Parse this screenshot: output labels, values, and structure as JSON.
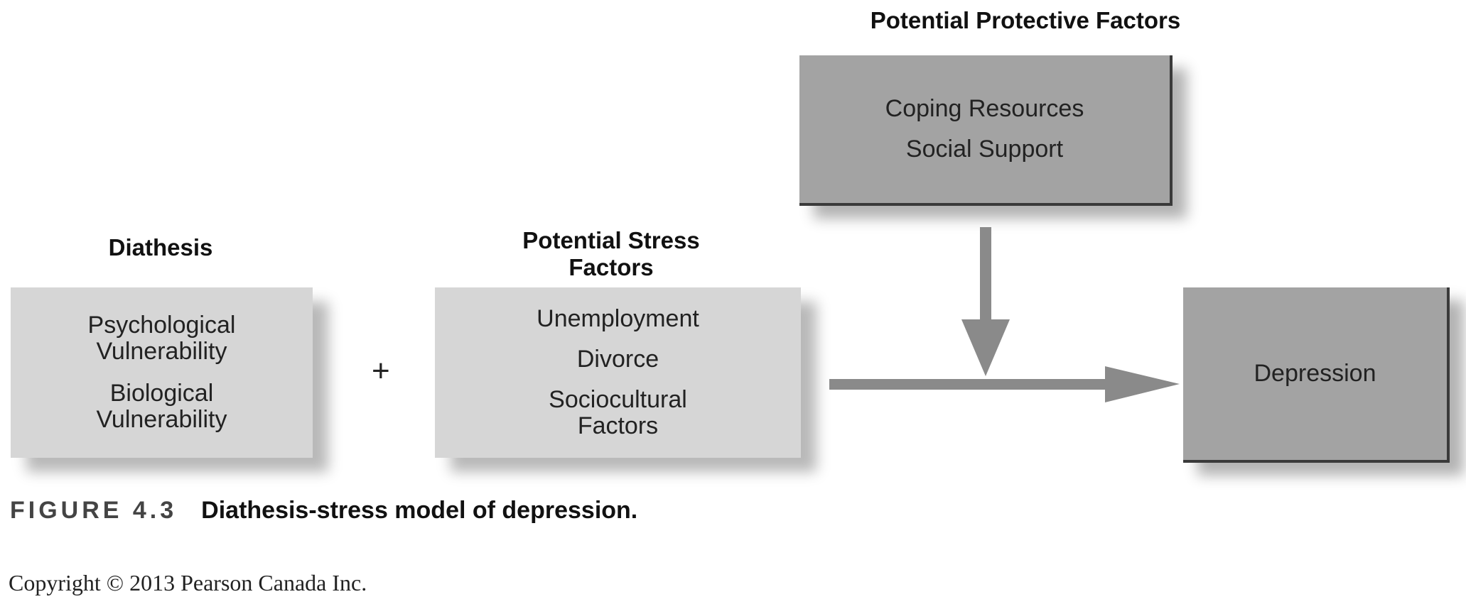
{
  "protective": {
    "heading": "Potential Protective Factors",
    "items": [
      "Coping Resources",
      "Social Support"
    ]
  },
  "diathesis": {
    "heading": "Diathesis",
    "items": [
      "Psychological\nVulnerability",
      "Biological\nVulnerability"
    ]
  },
  "operator": "+",
  "stress": {
    "heading": "Potential Stress\nFactors",
    "items": [
      "Unemployment",
      "Divorce",
      "Sociocultural\nFactors"
    ]
  },
  "outcome": {
    "label": "Depression"
  },
  "caption": {
    "figure_number": "FIGURE 4.3",
    "text": "Diathesis-stress model of depression."
  },
  "copyright": "Copyright © 2013 Pearson Canada Inc.",
  "colors": {
    "light_box": "#d6d6d6",
    "dark_box": "#a3a3a3",
    "arrow": "#8a8a8a"
  }
}
